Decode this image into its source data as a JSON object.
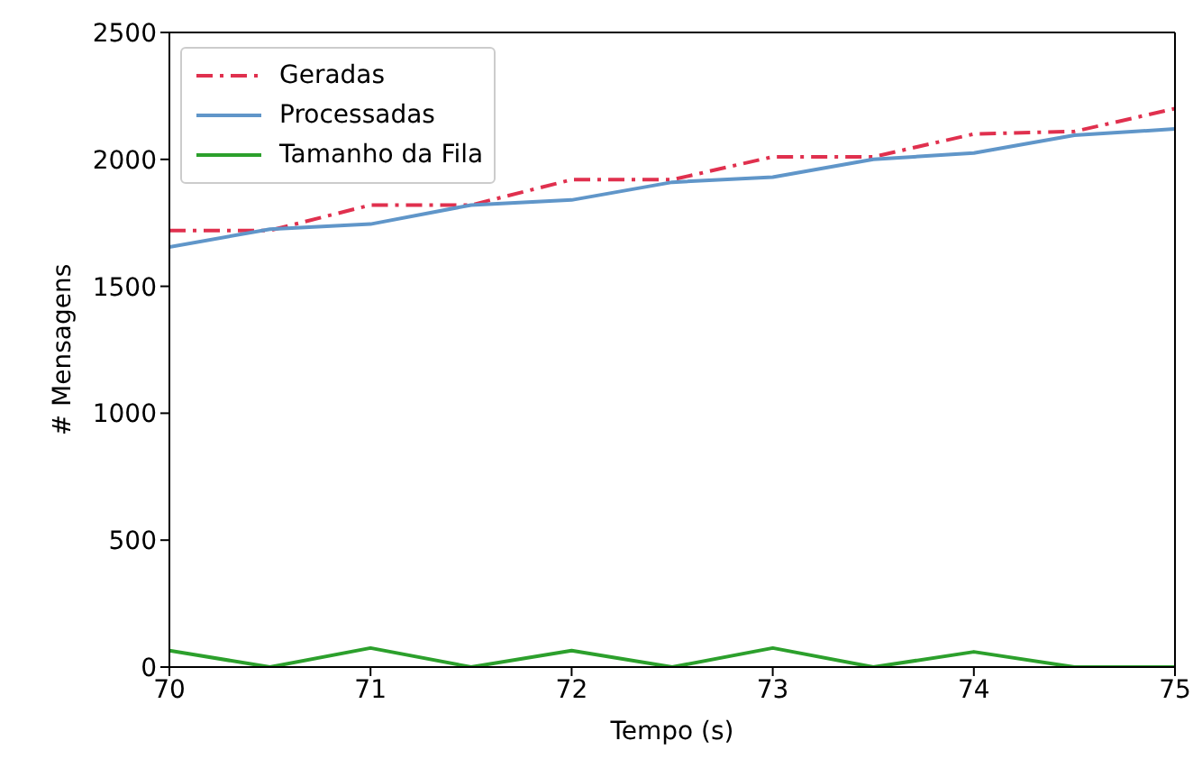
{
  "chart_data": {
    "type": "line",
    "xlabel": "Tempo (s)",
    "ylabel": "# Mensagens",
    "x": [
      70,
      70.5,
      71,
      71.5,
      72,
      72.5,
      73,
      73.5,
      74,
      74.5,
      75
    ],
    "series": [
      {
        "name": "Geradas",
        "color": "#e0304e",
        "line_style": "dashed",
        "values": [
          1720,
          1720,
          1820,
          1820,
          1920,
          1920,
          2010,
          2010,
          2100,
          2110,
          2200
        ]
      },
      {
        "name": "Processadas",
        "color": "#6096c9",
        "line_style": "solid",
        "values": [
          1655,
          1725,
          1745,
          1820,
          1840,
          1910,
          1930,
          2000,
          2025,
          2095,
          2120
        ]
      },
      {
        "name": "Tamanho da Fila",
        "color": "#2ca02c",
        "line_style": "solid",
        "values": [
          65,
          0,
          75,
          0,
          65,
          0,
          75,
          0,
          60,
          0,
          0
        ]
      }
    ],
    "xlim": [
      70,
      75
    ],
    "xticks": [
      70,
      71,
      72,
      73,
      74,
      75
    ],
    "ylim": [
      0,
      2500
    ],
    "yticks": [
      0,
      500,
      1000,
      1500,
      2000,
      2500
    ],
    "grid": false,
    "legend": "top left",
    "marker": "none"
  }
}
